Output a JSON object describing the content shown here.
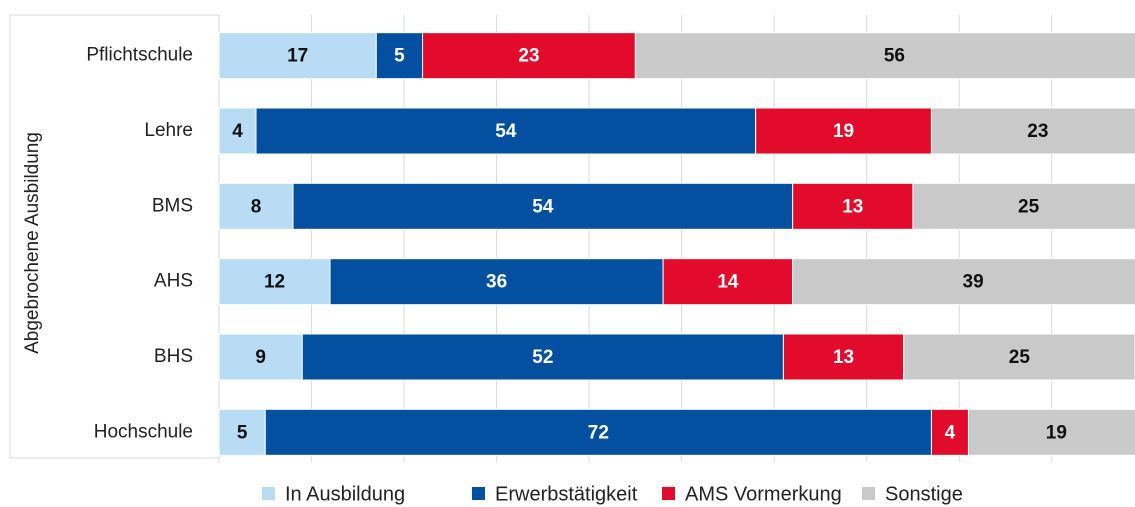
{
  "chart_data": {
    "type": "stacked_barh",
    "y_label": "Abgebrochene Ausbildung",
    "categories": [
      "Pflichtschule",
      "Lehre",
      "BMS",
      "AHS",
      "BHS",
      "Hochschule"
    ],
    "series": [
      {
        "name": "In Ausbildung",
        "color": "#b8dcf4",
        "values": [
          17,
          4,
          8,
          12,
          9,
          5
        ]
      },
      {
        "name": "Erwerbstätigkeit",
        "color": "#0350a0",
        "values": [
          5,
          54,
          54,
          36,
          52,
          72
        ]
      },
      {
        "name": "AMS Vormerkung",
        "color": "#e30b2c",
        "values": [
          23,
          19,
          13,
          14,
          13,
          4
        ]
      },
      {
        "name": "Sonstige",
        "color": "#c9c9c9",
        "values": [
          56,
          23,
          25,
          39,
          25,
          19
        ]
      }
    ],
    "xlim": [
      0,
      99
    ],
    "xticks": [
      0,
      10,
      20,
      30,
      40,
      50,
      60,
      70,
      80,
      90
    ],
    "grid": true,
    "legend": "bottom"
  }
}
